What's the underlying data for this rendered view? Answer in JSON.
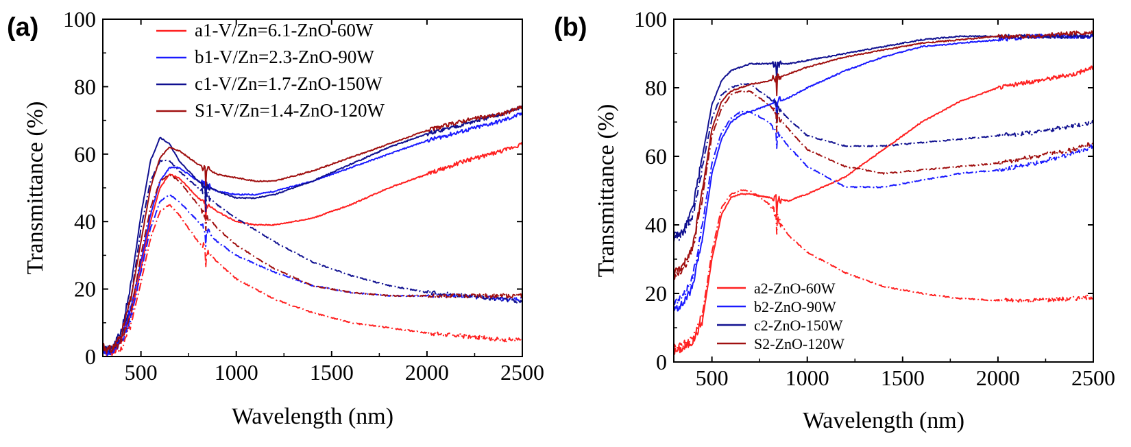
{
  "chart_data": [
    {
      "panel": "(a)",
      "type": "line",
      "xlabel": "Wavelength (nm)",
      "ylabel": "Transmittance (%)",
      "xlim": [
        300,
        2500
      ],
      "ylim": [
        0,
        100
      ],
      "xticks": [
        500,
        1000,
        1500,
        2000,
        2500
      ],
      "yticks": [
        0,
        20,
        40,
        60,
        80,
        100
      ],
      "legend_position": "top-center",
      "series": [
        {
          "name": "a1-V/Zn=6.1-ZnO-60W",
          "color": "#ff2020",
          "solid": {
            "x": [
              300,
              320,
              350,
              400,
              450,
              500,
              550,
              600,
              650,
              700,
              800,
              900,
              1000,
              1100,
              1200,
              1400,
              1600,
              1800,
              2000,
              2200,
              2400,
              2500
            ],
            "y": [
              3,
              1,
              1,
              5,
              13,
              26,
              40,
              50,
              54,
              53,
              47,
              43,
              40,
              39,
              39,
              41,
              45,
              50,
              54,
              58,
              61,
              63
            ]
          },
          "dashdot": {
            "x": [
              300,
              350,
              400,
              450,
              500,
              550,
              600,
              650,
              700,
              800,
              900,
              1000,
              1200,
              1400,
              1600,
              1800,
              2000,
              2200,
              2400,
              2500
            ],
            "y": [
              2,
              1,
              3,
              10,
              22,
              35,
              43,
              45,
              42,
              34,
              28,
              23,
              17,
              13,
              10,
              8.5,
              7,
              6,
              5,
              5
            ]
          }
        },
        {
          "name": "b1-V/Zn=2.3-ZnO-90W",
          "color": "#1a1aff",
          "solid": {
            "x": [
              300,
              320,
              350,
              400,
              450,
              500,
              550,
              600,
              650,
              700,
              800,
              900,
              1000,
              1100,
              1200,
              1400,
              1600,
              1800,
              2000,
              2200,
              2400,
              2500
            ],
            "y": [
              3,
              1,
              1,
              6,
              15,
              28,
              42,
              52,
              56,
              56,
              52,
              49,
              48,
              48,
              49,
              52,
              56,
              60,
              64,
              67,
              70,
              72
            ]
          },
          "dashdot": {
            "x": [
              300,
              350,
              400,
              450,
              500,
              550,
              600,
              650,
              700,
              800,
              900,
              1000,
              1200,
              1400,
              1600,
              1800,
              2000,
              2200,
              2400,
              2500
            ],
            "y": [
              2,
              1,
              4,
              12,
              25,
              38,
              46,
              48,
              46,
              40,
              34,
              30,
              25,
              21,
              19,
              18,
              18,
              18,
              17,
              17
            ]
          }
        },
        {
          "name": "c1-V/Zn=1.7-ZnO-150W",
          "color": "#101090",
          "solid": {
            "x": [
              300,
              320,
              350,
              400,
              450,
              500,
              550,
              600,
              650,
              700,
              800,
              900,
              1000,
              1100,
              1200,
              1400,
              1600,
              1800,
              2000,
              2200,
              2400,
              2500
            ],
            "y": [
              4,
              2,
              2,
              8,
              22,
              42,
              58,
              65,
              63,
              58,
              52,
              49,
              47,
              47,
              48,
              52,
              57,
              62,
              66,
              69,
              72,
              74
            ]
          },
          "dashdot": {
            "x": [
              300,
              350,
              400,
              450,
              500,
              550,
              600,
              650,
              700,
              800,
              900,
              1000,
              1200,
              1400,
              1600,
              1800,
              2000,
              2200,
              2400,
              2500
            ],
            "y": [
              3,
              2,
              6,
              18,
              38,
              52,
              58,
              58,
              55,
              50,
              45,
              41,
              34,
              28,
              24,
              21,
              19,
              18,
              17,
              16
            ]
          }
        },
        {
          "name": "S1-V/Zn=1.4-ZnO-120W",
          "color": "#a01010",
          "solid": {
            "x": [
              300,
              320,
              350,
              400,
              450,
              500,
              550,
              600,
              650,
              700,
              800,
              900,
              1000,
              1100,
              1200,
              1400,
              1600,
              1800,
              2000,
              2200,
              2400,
              2500
            ],
            "y": [
              4,
              2,
              2,
              7,
              18,
              34,
              50,
              59,
              62,
              61,
              57,
              54,
              53,
              52,
              52,
              55,
              59,
              63,
              67,
              70,
              72,
              74
            ]
          },
          "dashdot": {
            "x": [
              300,
              350,
              400,
              450,
              500,
              550,
              600,
              650,
              700,
              800,
              900,
              1000,
              1200,
              1400,
              1600,
              1800,
              2000,
              2200,
              2400,
              2500
            ],
            "y": [
              3,
              2,
              5,
              14,
              30,
              44,
              52,
              54,
              52,
              45,
              38,
              33,
              26,
              21,
              19,
              18,
              18,
              18,
              18,
              18
            ]
          }
        }
      ]
    },
    {
      "panel": "(b)",
      "type": "line",
      "xlabel": "Wavelength (nm)",
      "ylabel": "Transmittance (%)",
      "xlim": [
        300,
        2500
      ],
      "ylim": [
        0,
        100
      ],
      "xticks": [
        500,
        1000,
        1500,
        2000,
        2500
      ],
      "yticks": [
        0,
        20,
        40,
        60,
        80,
        100
      ],
      "legend_position": "bottom-left",
      "series": [
        {
          "name": "a2-ZnO-60W",
          "color": "#ff2020",
          "solid": {
            "x": [
              300,
              350,
              400,
              450,
              500,
              550,
              600,
              650,
              700,
              800,
              900,
              1000,
              1200,
              1400,
              1600,
              1800,
              2000,
              2200,
              2400,
              2500
            ],
            "y": [
              3,
              4,
              6,
              12,
              30,
              43,
              48,
              49,
              49,
              48,
              47,
              49,
              54,
              62,
              70,
              76,
              80,
              82,
              84,
              86
            ]
          },
          "dashdot": {
            "x": [
              300,
              350,
              400,
              450,
              500,
              550,
              600,
              650,
              700,
              800,
              900,
              1000,
              1200,
              1400,
              1600,
              1800,
              2000,
              2200,
              2400,
              2500
            ],
            "y": [
              4,
              5,
              7,
              14,
              32,
              45,
              49,
              50,
              50,
              46,
              37,
              32,
              26,
              22,
              20,
              18.5,
              18,
              18,
              18.5,
              19
            ]
          }
        },
        {
          "name": "b2-ZnO-90W",
          "color": "#1a1aff",
          "solid": {
            "x": [
              300,
              350,
              400,
              450,
              500,
              550,
              600,
              650,
              700,
              800,
              900,
              1000,
              1200,
              1400,
              1600,
              1800,
              2000,
              2200,
              2400,
              2500
            ],
            "y": [
              15,
              17,
              22,
              36,
              55,
              65,
              70,
              72,
              73,
              75,
              77,
              80,
              85,
              89,
              92,
              93,
              94,
              95,
              95,
              95
            ]
          },
          "dashdot": {
            "x": [
              300,
              350,
              400,
              450,
              500,
              550,
              600,
              650,
              700,
              800,
              900,
              1000,
              1200,
              1400,
              1600,
              1800,
              2000,
              2200,
              2400,
              2500
            ],
            "y": [
              17,
              19,
              25,
              40,
              58,
              67,
              71,
              73,
              73,
              70,
              63,
              57,
              51,
              51,
              53,
              55,
              56,
              58,
              61,
              63
            ]
          }
        },
        {
          "name": "c2-ZnO-150W",
          "color": "#101090",
          "solid": {
            "x": [
              300,
              350,
              400,
              450,
              500,
              550,
              600,
              650,
              700,
              800,
              900,
              1000,
              1200,
              1400,
              1600,
              1800,
              2000,
              2200,
              2400,
              2500
            ],
            "y": [
              37,
              38,
              45,
              60,
              75,
              82,
              85,
              86,
              87,
              87,
              87,
              88,
              90,
              92,
              94,
              95,
              95,
              95,
              95,
              95
            ]
          },
          "dashdot": {
            "x": [
              300,
              350,
              400,
              450,
              500,
              550,
              600,
              650,
              700,
              800,
              900,
              1000,
              1200,
              1400,
              1600,
              1800,
              2000,
              2200,
              2400,
              2500
            ],
            "y": [
              36,
              37,
              43,
              57,
              71,
              78,
              80,
              81,
              81,
              77,
              71,
              66,
              63,
              63,
              64,
              65,
              66,
              67,
              69,
              70
            ]
          }
        },
        {
          "name": "S2-ZnO-120W",
          "color": "#a01010",
          "solid": {
            "x": [
              300,
              350,
              400,
              450,
              500,
              550,
              600,
              650,
              700,
              800,
              900,
              1000,
              1200,
              1400,
              1600,
              1800,
              2000,
              2200,
              2400,
              2500
            ],
            "y": [
              26,
              28,
              34,
              50,
              68,
              76,
              79,
              80,
              81,
              82,
              84,
              86,
              89,
              91,
              93,
              94,
              95,
              95,
              96,
              96
            ]
          },
          "dashdot": {
            "x": [
              300,
              350,
              400,
              450,
              500,
              550,
              600,
              650,
              700,
              800,
              900,
              1000,
              1200,
              1400,
              1600,
              1800,
              2000,
              2200,
              2400,
              2500
            ],
            "y": [
              25,
              27,
              33,
              48,
              66,
              74,
              78,
              79,
              79,
              75,
              68,
              62,
              57,
              55,
              56,
              57,
              58,
              60,
              62,
              64
            ]
          }
        }
      ]
    }
  ]
}
